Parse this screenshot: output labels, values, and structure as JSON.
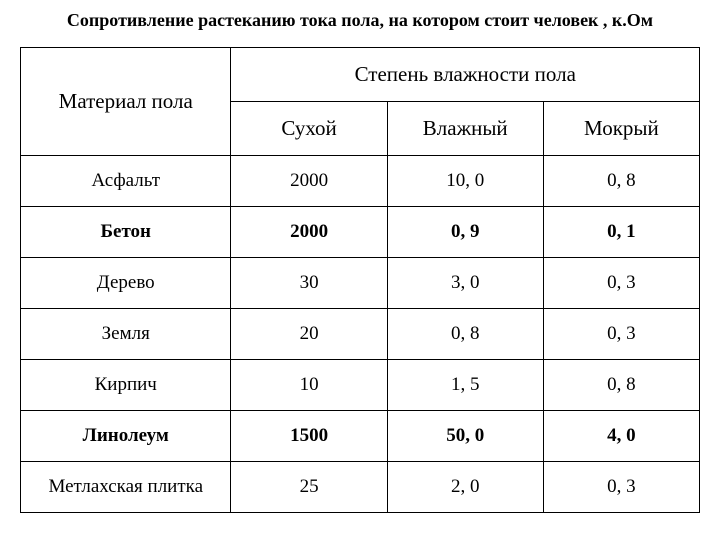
{
  "title": "Сопротивление растеканию тока пола, на котором стоит человек , к.Ом",
  "table": {
    "row_header": "Материал пола",
    "group_header": "Степень влажности пола",
    "columns": [
      "Сухой",
      "Влажный",
      "Мокрый"
    ],
    "column_widths": [
      "31%",
      "23%",
      "23%",
      "23%"
    ],
    "rows": [
      {
        "material": "Асфальт",
        "values": [
          "2000",
          "10, 0",
          "0, 8"
        ],
        "bold": false
      },
      {
        "material": "Бетон",
        "values": [
          "2000",
          "0, 9",
          "0, 1"
        ],
        "bold": true
      },
      {
        "material": "Дерево",
        "values": [
          "30",
          "3, 0",
          "0, 3"
        ],
        "bold": false
      },
      {
        "material": "Земля",
        "values": [
          "20",
          "0, 8",
          "0, 3"
        ],
        "bold": false
      },
      {
        "material": "Кирпич",
        "values": [
          "10",
          "1, 5",
          "0, 8"
        ],
        "bold": false
      },
      {
        "material": "Линолеум",
        "values": [
          "1500",
          "50, 0",
          "4, 0"
        ],
        "bold": true
      },
      {
        "material": "Метлахская плитка",
        "values": [
          "25",
          "2, 0",
          "0, 3"
        ],
        "bold": false
      }
    ],
    "border_color": "#000000",
    "background_color": "#ffffff",
    "title_fontsize": 18,
    "header_fontsize": 21,
    "cell_fontsize": 19
  }
}
